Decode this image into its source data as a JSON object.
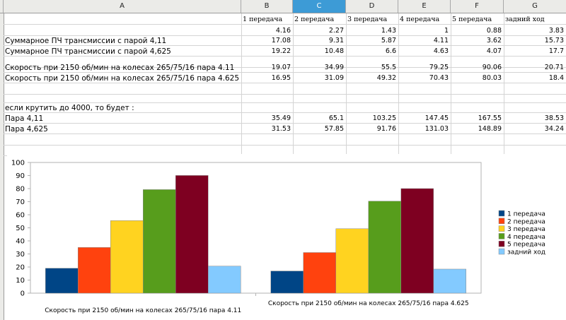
{
  "columns": [
    "A",
    "B",
    "C",
    "D",
    "E",
    "F",
    "G"
  ],
  "active_column": "C",
  "table": {
    "headers": [
      "1 передача",
      "2 передача",
      "3 передача",
      "4 передача",
      "5 передача",
      "задний ход"
    ],
    "ratios": [
      "4.16",
      "2.27",
      "1.43",
      "1",
      "0.88",
      "3.83"
    ],
    "rows": [
      {
        "label": "Суммарное ПЧ трансмиссии с парой 4,11",
        "values": [
          "17.08",
          "9.31",
          "5.87",
          "4.11",
          "3.62",
          "15.73"
        ]
      },
      {
        "label": "Суммарное ПЧ трансмиссии с парой 4,625",
        "values": [
          "19.22",
          "10.48",
          "6.6",
          "4.63",
          "4.07",
          "17.7"
        ]
      },
      {
        "label": "Скорость при 2150 об/мин на колесах 265/75/16 пара 4.11",
        "values": [
          "19.07",
          "34.99",
          "55.5",
          "79.25",
          "90.06",
          "20.71"
        ]
      },
      {
        "label": "Скорость при 2150 об/мин на колесах 265/75/16 пара 4.625",
        "values": [
          "16.95",
          "31.09",
          "49.32",
          "70.43",
          "80.03",
          "18.4"
        ]
      }
    ],
    "note": "если крутить до 4000, то будет :",
    "rows2": [
      {
        "label": "Пара 4,11",
        "values": [
          "35.49",
          "65.1",
          "103.25",
          "147.45",
          "167.55",
          "38.53"
        ]
      },
      {
        "label": "Пара 4,625",
        "values": [
          "31.53",
          "57.85",
          "91.76",
          "131.03",
          "148.89",
          "34.24"
        ]
      }
    ]
  },
  "chart_data": {
    "type": "bar",
    "categories": [
      "Скорость при 2150 об/мин на колесах 265/75/16 пара 4.11",
      "Скорость при 2150 об/мин на колесах 265/75/16 пара 4.625"
    ],
    "series": [
      {
        "name": "1 передача",
        "values": [
          19.07,
          16.95
        ]
      },
      {
        "name": "2 передача",
        "values": [
          34.99,
          31.09
        ]
      },
      {
        "name": "3 передача",
        "values": [
          55.5,
          49.32
        ]
      },
      {
        "name": "4 передача",
        "values": [
          79.25,
          70.43
        ]
      },
      {
        "name": "5 передача",
        "values": [
          90.06,
          80.03
        ]
      },
      {
        "name": "задний ход",
        "values": [
          20.71,
          18.4
        ]
      }
    ],
    "colors": [
      "#004586",
      "#ff420e",
      "#ffd320",
      "#579d1c",
      "#7e0021",
      "#83caff"
    ],
    "ylim": [
      0,
      100
    ],
    "yticks": [
      "0",
      "10",
      "20",
      "30",
      "40",
      "50",
      "60",
      "70",
      "80",
      "90",
      "100"
    ],
    "grid": false,
    "legend": "right"
  }
}
